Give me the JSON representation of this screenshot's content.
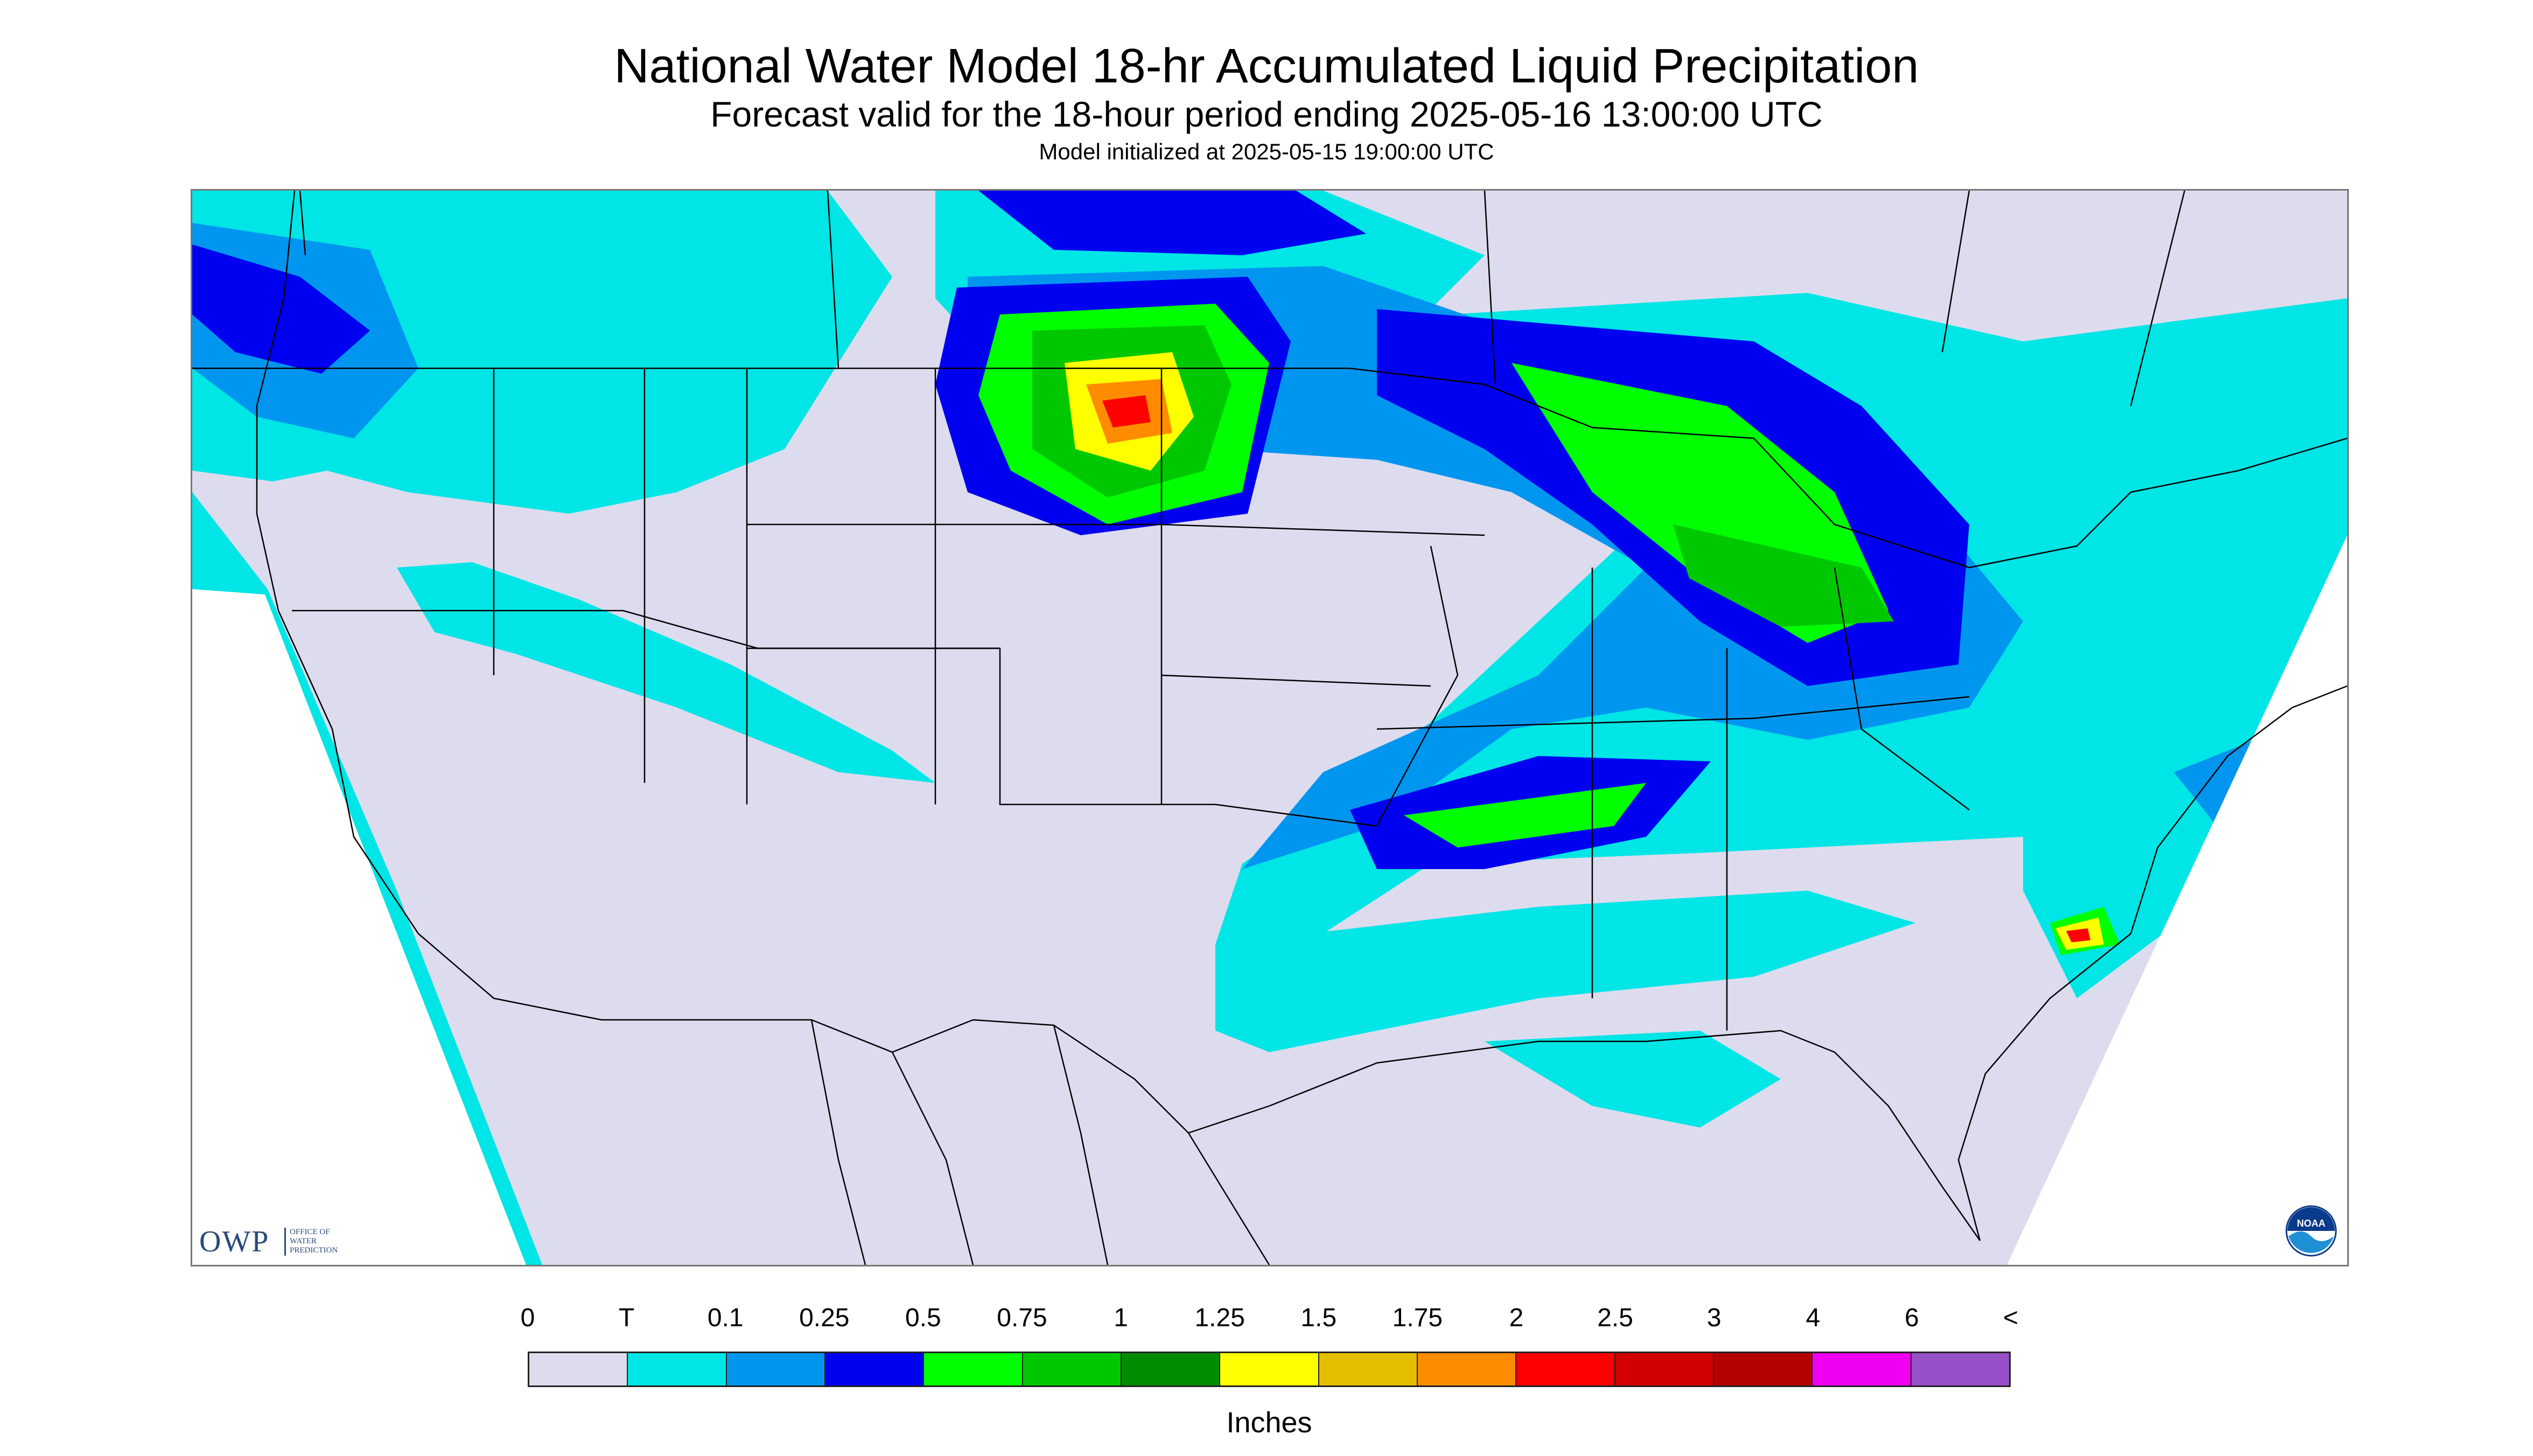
{
  "header": {
    "title": "National Water Model 18-hr Accumulated Liquid Precipitation",
    "subtitle": "Forecast valid for the 18-hour period ending 2025-05-16 13:00:00 UTC",
    "init_line": "Model initialized at 2025-05-15 19:00:00 UTC"
  },
  "map": {
    "background_color": "#dcdcee",
    "no_data_color": "#ffffff",
    "boundary_color": "#000000"
  },
  "logos": {
    "owp": {
      "letters": "OWP",
      "line1": "OFFICE OF",
      "line2": "WATER",
      "line3": "PREDICTION"
    },
    "noaa": {
      "letters": "NOAA"
    }
  },
  "legend": {
    "units": "Inches",
    "labels": [
      "0",
      "T",
      "0.1",
      "0.25",
      "0.5",
      "0.75",
      "1",
      "1.25",
      "1.5",
      "1.75",
      "2",
      "2.5",
      "3",
      "4",
      "6",
      "<"
    ],
    "colors": [
      "#dcdcee",
      "#00e5e5",
      "#0096f0",
      "#0000f0",
      "#00ff00",
      "#00c800",
      "#008c00",
      "#ffff00",
      "#e6be00",
      "#ff8c00",
      "#ff0000",
      "#d20000",
      "#b40000",
      "#f000f0",
      "#9650c8"
    ]
  }
}
